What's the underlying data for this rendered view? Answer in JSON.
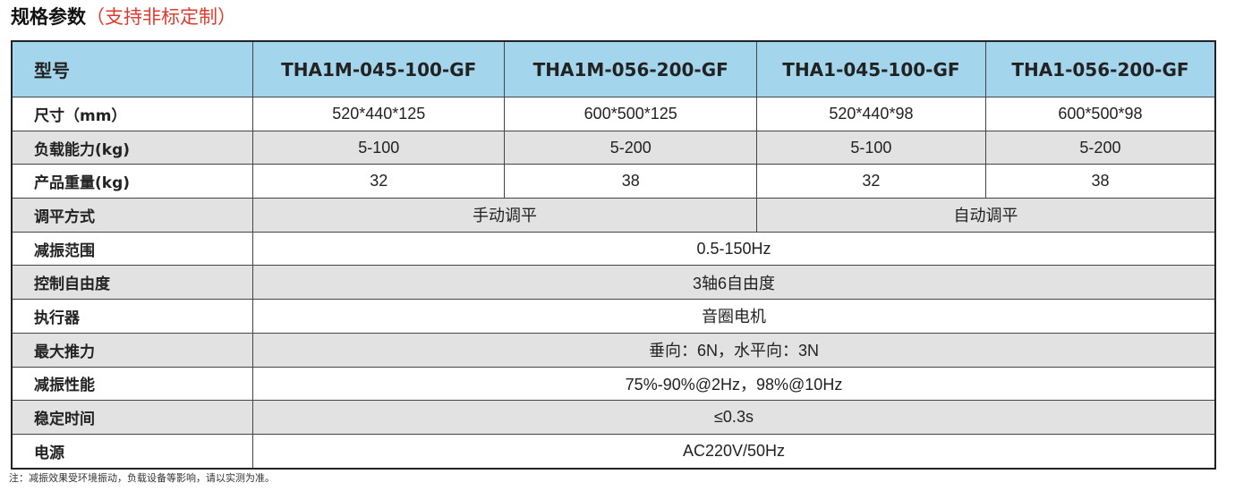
{
  "title": {
    "main": "规格参数",
    "sub": "（支持非标定制）"
  },
  "header": {
    "label": "型号",
    "models": [
      "THA1M-045-100-GF",
      "THA1M-056-200-GF",
      "THA1-045-100-GF",
      "THA1-056-200-GF"
    ]
  },
  "rows_four": [
    {
      "label": "尺寸（mm）",
      "values": [
        "520*440*125",
        "600*500*125",
        "520*440*98",
        "600*500*98"
      ]
    },
    {
      "label": "负载能力(kg)",
      "values": [
        "5-100",
        "5-200",
        "5-100",
        "5-200"
      ]
    },
    {
      "label": "产品重量(kg)",
      "values": [
        "32",
        "38",
        "32",
        "38"
      ]
    }
  ],
  "leveling": {
    "label": "调平方式",
    "values": [
      "手动调平",
      "自动调平"
    ]
  },
  "rows_span": [
    {
      "label": "减振范围",
      "value": "0.5-150Hz"
    },
    {
      "label": "控制自由度",
      "value": "3轴6自由度"
    },
    {
      "label": "执行器",
      "value": "音圈电机"
    },
    {
      "label": "最大推力",
      "value": "垂向：6N，水平向：3N"
    },
    {
      "label": "减振性能",
      "value": "75%-90%@2Hz，98%@10Hz"
    },
    {
      "label": "稳定时间",
      "value": "≤0.3s"
    },
    {
      "label": "电源",
      "value": "AC220V/50Hz"
    }
  ],
  "note": "注：减振效果受环境振动，负载设备等影响，请以实测为准。",
  "colors": {
    "header_bg": "#a3d5ec",
    "shade_bg": "#e2e2e2",
    "accent_red": "#e03a2f"
  }
}
